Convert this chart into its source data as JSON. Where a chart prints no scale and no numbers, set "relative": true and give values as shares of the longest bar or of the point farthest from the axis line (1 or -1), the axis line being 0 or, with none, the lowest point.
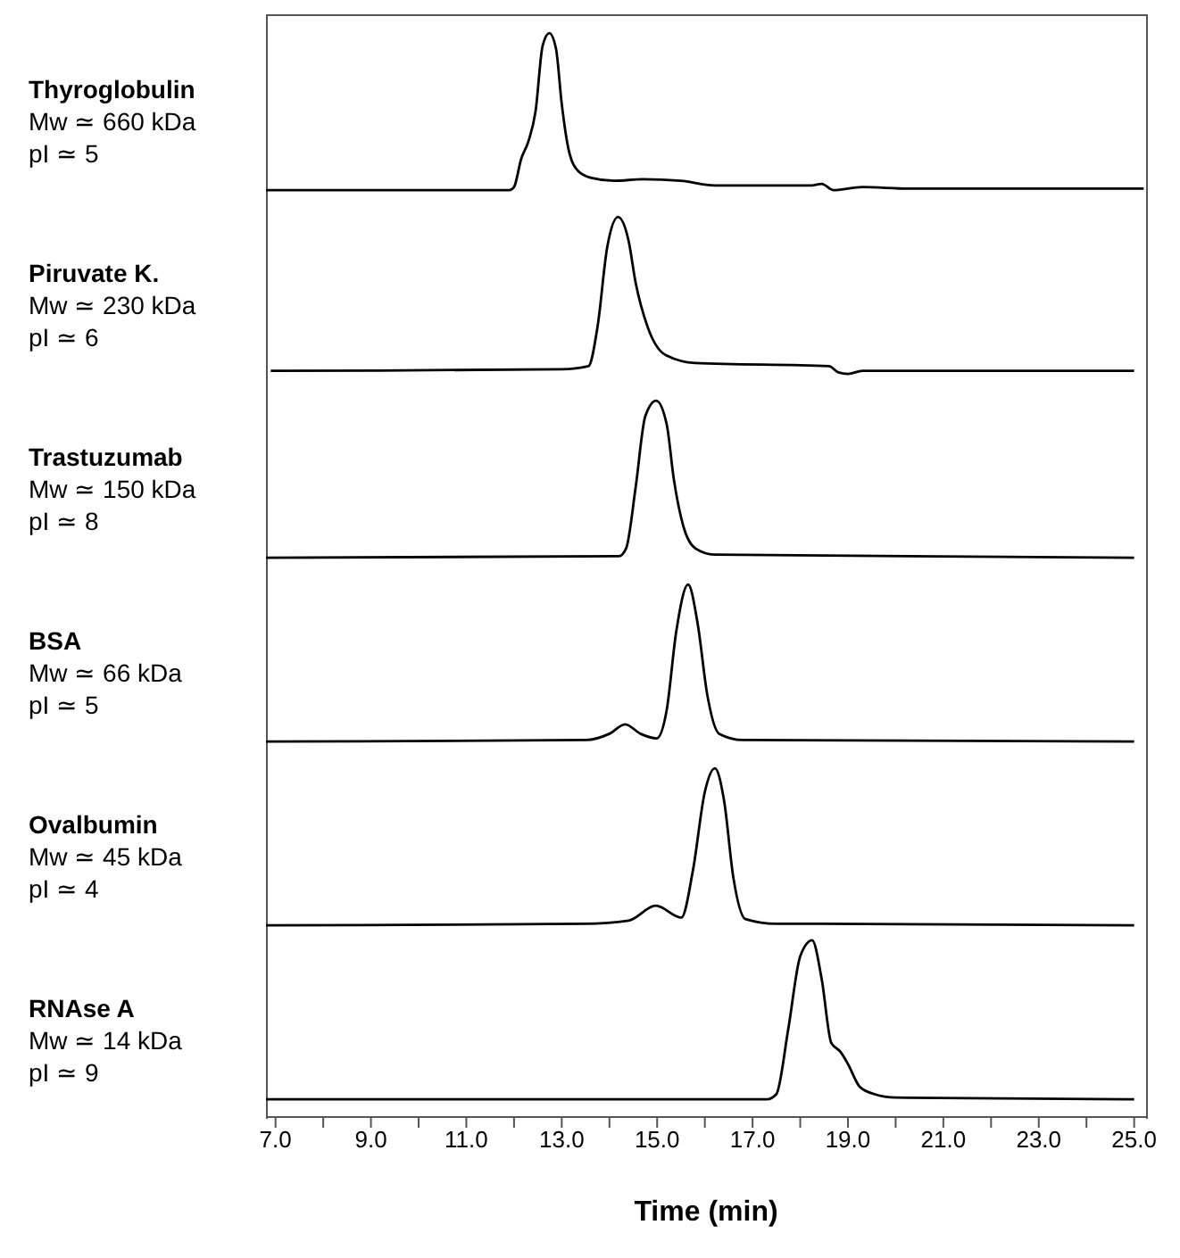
{
  "chart_data": [
    {
      "type": "line",
      "relative": true,
      "annotations": [
        "Thyroglobulin",
        "Mw ≃ 660 kDa",
        "pI ≃ 5"
      ],
      "xlim": [
        6.8,
        25.25
      ],
      "tick_labels": false,
      "x": [
        6.8,
        11.9,
        12.0,
        12.15,
        12.3,
        12.45,
        12.6,
        12.74,
        12.88,
        13.0,
        13.15,
        13.35,
        13.6,
        14.1,
        14.7,
        15.5,
        16.2,
        18.2,
        18.45,
        18.7,
        19.3,
        20.3,
        25.2
      ],
      "series": [
        {
          "color": "#000000",
          "values": [
            0,
            0,
            0.02,
            0.2,
            0.31,
            0.5,
            0.92,
            1,
            0.9,
            0.55,
            0.25,
            0.12,
            0.08,
            0.06,
            0.07,
            0.06,
            0.03,
            0.03,
            0.04,
            0,
            0.02,
            0.01,
            0.01
          ]
        }
      ]
    },
    {
      "type": "line",
      "relative": true,
      "annotations": [
        "Piruvate K.",
        "Mw ≃ 230 kDa",
        "pI ≃ 6"
      ],
      "xlim": [
        6.8,
        25.25
      ],
      "tick_labels": false,
      "x": [
        6.9,
        13.0,
        13.56,
        13.75,
        13.95,
        14.18,
        14.4,
        14.55,
        14.8,
        15.18,
        15.8,
        18.6,
        18.8,
        19.0,
        19.3,
        25.0
      ],
      "series": [
        {
          "color": "#000000",
          "values": [
            0.02,
            0.03,
            0.05,
            0.3,
            0.8,
            1,
            0.85,
            0.58,
            0.3,
            0.12,
            0.07,
            0.05,
            0.01,
            0,
            0.02,
            0.02
          ]
        }
      ]
    },
    {
      "type": "line",
      "relative": true,
      "annotations": [
        "Trastuzumab",
        "Mw ≃ 150 kDa",
        "pI ≃ 8"
      ],
      "xlim": [
        6.8,
        25.25
      ],
      "tick_labels": false,
      "x": [
        6.8,
        14.2,
        14.35,
        14.55,
        14.75,
        14.98,
        15.2,
        15.35,
        15.55,
        15.8,
        16.2,
        25.0
      ],
      "series": [
        {
          "color": "#000000",
          "values": [
            0,
            0.01,
            0.06,
            0.45,
            0.9,
            1,
            0.85,
            0.5,
            0.2,
            0.06,
            0.02,
            0
          ]
        }
      ]
    },
    {
      "type": "line",
      "relative": true,
      "annotations": [
        "BSA",
        "Mw ≃ 66 kDa",
        "pI ≃ 5"
      ],
      "xlim": [
        6.8,
        25.25
      ],
      "tick_labels": false,
      "x": [
        6.8,
        13.5,
        14.0,
        14.33,
        14.65,
        14.99,
        15.2,
        15.4,
        15.65,
        15.85,
        16.05,
        16.3,
        16.8,
        25.0
      ],
      "series": [
        {
          "color": "#000000",
          "values": [
            0,
            0.01,
            0.05,
            0.11,
            0.05,
            0.02,
            0.2,
            0.7,
            1,
            0.75,
            0.3,
            0.05,
            0.01,
            0
          ]
        }
      ]
    },
    {
      "type": "line",
      "relative": true,
      "annotations": [
        "Ovalbumin",
        "Mw ≃ 45 kDa",
        "pI ≃ 4"
      ],
      "xlim": [
        6.8,
        25.25
      ],
      "tick_labels": false,
      "x": [
        6.8,
        13.5,
        14.4,
        14.97,
        15.51,
        15.75,
        16.0,
        16.21,
        16.4,
        16.6,
        16.85,
        17.5,
        18.4,
        25.0
      ],
      "series": [
        {
          "color": "#000000",
          "values": [
            0,
            0.01,
            0.03,
            0.125,
            0.05,
            0.35,
            0.85,
            1,
            0.8,
            0.3,
            0.04,
            0.01,
            0.01,
            0
          ]
        }
      ]
    },
    {
      "type": "line",
      "relative": true,
      "annotations": [
        "RNAse A",
        "Mw ≃ 14 kDa",
        "pI ≃ 9"
      ],
      "xlim": [
        6.8,
        25.25
      ],
      "tick_labels": "x",
      "xlabel": "Time (min)",
      "xticks": [
        {
          "value": 7,
          "label": "7.0"
        },
        {
          "value": 8,
          "label": null
        },
        {
          "value": 9,
          "label": "9.0"
        },
        {
          "value": 10,
          "label": null
        },
        {
          "value": 11,
          "label": "11.0"
        },
        {
          "value": 12,
          "label": null
        },
        {
          "value": 13,
          "label": "13.0"
        },
        {
          "value": 14,
          "label": null
        },
        {
          "value": 15,
          "label": "15.0"
        },
        {
          "value": 16,
          "label": null
        },
        {
          "value": 17,
          "label": "17.0"
        },
        {
          "value": 18,
          "label": null
        },
        {
          "value": 19,
          "label": "19.0"
        },
        {
          "value": 20,
          "label": null
        },
        {
          "value": 21,
          "label": "21.0"
        },
        {
          "value": 22,
          "label": null
        },
        {
          "value": 23,
          "label": "23.0"
        },
        {
          "value": 24,
          "label": null
        },
        {
          "value": 25,
          "label": "25.0"
        }
      ],
      "x": [
        6.8,
        17.3,
        17.5,
        17.75,
        18.0,
        18.25,
        18.45,
        18.65,
        18.84,
        19.0,
        19.25,
        19.55,
        20.0,
        25.0
      ],
      "series": [
        {
          "color": "#000000",
          "values": [
            0.1,
            0.1,
            0.13,
            0.5,
            0.91,
            1,
            0.78,
            0.42,
            0.37,
            0.3,
            0.17,
            0.13,
            0.11,
            0.1
          ]
        }
      ]
    }
  ]
}
